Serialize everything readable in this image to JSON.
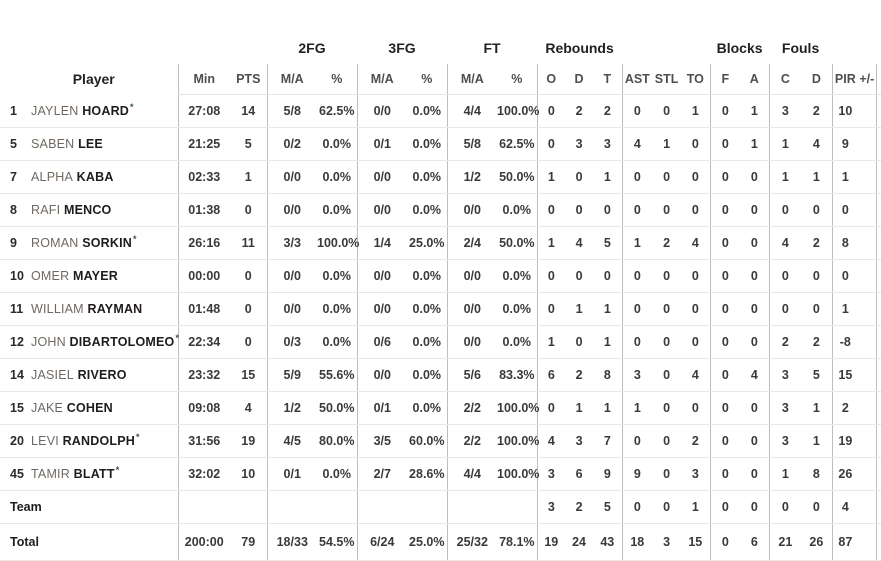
{
  "table": {
    "player_header": "Player",
    "groups": [
      "2FG",
      "3FG",
      "FT",
      "Rebounds",
      "Blocks",
      "Fouls"
    ],
    "sub_headers": [
      "Min",
      "PTS",
      "M/A",
      "%",
      "M/A",
      "%",
      "M/A",
      "%",
      "O",
      "D",
      "T",
      "AST",
      "STL",
      "TO",
      "F",
      "A",
      "C",
      "D",
      "PIR",
      "+/-"
    ],
    "starter_marker": "*",
    "rows": [
      {
        "number": "1",
        "first": "JAYLEN",
        "last": "HOARD",
        "starter": true,
        "stats": [
          "27:08",
          "14",
          "5/8",
          "62.5%",
          "0/0",
          "0.0%",
          "4/4",
          "100.0%",
          "0",
          "2",
          "2",
          "0",
          "0",
          "1",
          "0",
          "1",
          "3",
          "2",
          "10",
          ""
        ]
      },
      {
        "number": "5",
        "first": "SABEN",
        "last": "LEE",
        "starter": false,
        "stats": [
          "21:25",
          "5",
          "0/2",
          "0.0%",
          "0/1",
          "0.0%",
          "5/8",
          "62.5%",
          "0",
          "3",
          "3",
          "4",
          "1",
          "0",
          "0",
          "1",
          "1",
          "4",
          "9",
          ""
        ]
      },
      {
        "number": "7",
        "first": "ALPHA",
        "last": "KABA",
        "starter": false,
        "stats": [
          "02:33",
          "1",
          "0/0",
          "0.0%",
          "0/0",
          "0.0%",
          "1/2",
          "50.0%",
          "1",
          "0",
          "1",
          "0",
          "0",
          "0",
          "0",
          "0",
          "1",
          "1",
          "1",
          ""
        ]
      },
      {
        "number": "8",
        "first": "RAFI",
        "last": "MENCO",
        "starter": false,
        "stats": [
          "01:38",
          "0",
          "0/0",
          "0.0%",
          "0/0",
          "0.0%",
          "0/0",
          "0.0%",
          "0",
          "0",
          "0",
          "0",
          "0",
          "0",
          "0",
          "0",
          "0",
          "0",
          "0",
          ""
        ]
      },
      {
        "number": "9",
        "first": "ROMAN",
        "last": "SORKIN",
        "starter": true,
        "stats": [
          "26:16",
          "11",
          "3/3",
          "100.0%",
          "1/4",
          "25.0%",
          "2/4",
          "50.0%",
          "1",
          "4",
          "5",
          "1",
          "2",
          "4",
          "0",
          "0",
          "4",
          "2",
          "8",
          ""
        ]
      },
      {
        "number": "10",
        "first": "OMER",
        "last": "MAYER",
        "starter": false,
        "stats": [
          "00:00",
          "0",
          "0/0",
          "0.0%",
          "0/0",
          "0.0%",
          "0/0",
          "0.0%",
          "0",
          "0",
          "0",
          "0",
          "0",
          "0",
          "0",
          "0",
          "0",
          "0",
          "0",
          ""
        ]
      },
      {
        "number": "11",
        "first": "WILLIAM",
        "last": "RAYMAN",
        "starter": false,
        "stats": [
          "01:48",
          "0",
          "0/0",
          "0.0%",
          "0/0",
          "0.0%",
          "0/0",
          "0.0%",
          "0",
          "1",
          "1",
          "0",
          "0",
          "0",
          "0",
          "0",
          "0",
          "0",
          "1",
          ""
        ]
      },
      {
        "number": "12",
        "first": "JOHN",
        "last": "DIBARTOLOMEO",
        "starter": true,
        "stats": [
          "22:34",
          "0",
          "0/3",
          "0.0%",
          "0/6",
          "0.0%",
          "0/0",
          "0.0%",
          "1",
          "0",
          "1",
          "0",
          "0",
          "0",
          "0",
          "0",
          "2",
          "2",
          "-8",
          ""
        ]
      },
      {
        "number": "14",
        "first": "JASIEL",
        "last": "RIVERO",
        "starter": false,
        "stats": [
          "23:32",
          "15",
          "5/9",
          "55.6%",
          "0/0",
          "0.0%",
          "5/6",
          "83.3%",
          "6",
          "2",
          "8",
          "3",
          "0",
          "4",
          "0",
          "4",
          "3",
          "5",
          "15",
          ""
        ]
      },
      {
        "number": "15",
        "first": "JAKE",
        "last": "COHEN",
        "starter": false,
        "stats": [
          "09:08",
          "4",
          "1/2",
          "50.0%",
          "0/1",
          "0.0%",
          "2/2",
          "100.0%",
          "0",
          "1",
          "1",
          "1",
          "0",
          "0",
          "0",
          "0",
          "3",
          "1",
          "2",
          ""
        ]
      },
      {
        "number": "20",
        "first": "LEVI",
        "last": "RANDOLPH",
        "starter": true,
        "stats": [
          "31:56",
          "19",
          "4/5",
          "80.0%",
          "3/5",
          "60.0%",
          "2/2",
          "100.0%",
          "4",
          "3",
          "7",
          "0",
          "0",
          "2",
          "0",
          "0",
          "3",
          "1",
          "19",
          ""
        ]
      },
      {
        "number": "45",
        "first": "TAMIR",
        "last": "BLATT",
        "starter": true,
        "stats": [
          "32:02",
          "10",
          "0/1",
          "0.0%",
          "2/7",
          "28.6%",
          "4/4",
          "100.0%",
          "3",
          "6",
          "9",
          "9",
          "0",
          "3",
          "0",
          "0",
          "1",
          "8",
          "26",
          ""
        ]
      },
      {
        "label": "Team",
        "stats": [
          "",
          "",
          "",
          "",
          "",
          "",
          "",
          "",
          "3",
          "2",
          "5",
          "0",
          "0",
          "1",
          "0",
          "0",
          "0",
          "0",
          "4",
          ""
        ]
      },
      {
        "label": "Total",
        "total": true,
        "stats": [
          "200:00",
          "79",
          "18/33",
          "54.5%",
          "6/24",
          "25.0%",
          "25/32",
          "78.1%",
          "19",
          "24",
          "43",
          "18",
          "3",
          "15",
          "0",
          "6",
          "21",
          "26",
          "87",
          ""
        ]
      }
    ]
  },
  "colors": {
    "group_header_text": "#222222",
    "sub_header_text": "#4e4e4e",
    "player_first_name": "#6f6862",
    "player_last_name": "#1f1c1b",
    "stat_text": "#3a3a3a",
    "starter_star": "#33505e",
    "vertical_rule": "#bdbdbd",
    "horizontal_rule": "#e9e9e9",
    "background": "#ffffff"
  }
}
